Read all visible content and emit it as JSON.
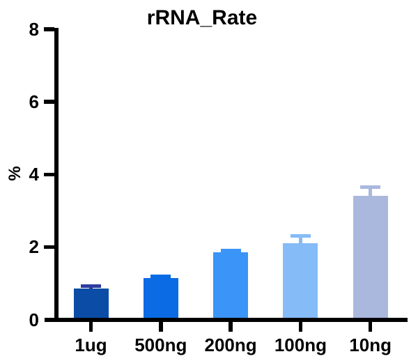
{
  "title": "rRNA_Rate",
  "chart_data": {
    "type": "bar",
    "title": "rRNA_Rate",
    "xlabel": "",
    "ylabel": "%",
    "categories": [
      "1ug",
      "500ng",
      "200ng",
      "100ng",
      "10ng"
    ],
    "values": [
      0.85,
      1.15,
      1.85,
      2.1,
      3.4
    ],
    "errors": [
      0.08,
      0.05,
      0.05,
      0.2,
      0.25
    ],
    "error_type": "sd-upper-whisker",
    "bar_colors": [
      "#0b4da6",
      "#0a6be4",
      "#3b94f7",
      "#85bbf7",
      "#aab8de"
    ],
    "error_colors": [
      "#2d3c9e",
      "#0a6be4",
      "#3b94f7",
      "#85bbf7",
      "#aab8de"
    ],
    "ylim": [
      0,
      8
    ],
    "yticks": [
      0,
      2,
      4,
      6,
      8
    ],
    "ytick_labels": [
      "0",
      "2",
      "4",
      "6",
      "8"
    ],
    "grid": false,
    "legend": "none",
    "axis_color": "#000000",
    "background_color": "#ffffff"
  }
}
